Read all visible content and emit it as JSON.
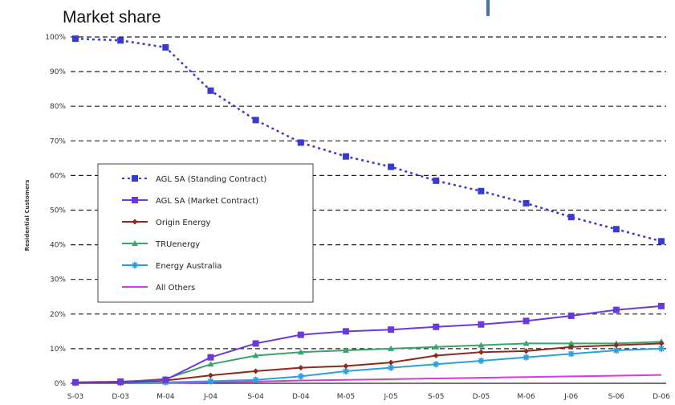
{
  "page": {
    "title": "Market share"
  },
  "chart_data": {
    "type": "line",
    "title": "",
    "xlabel": "",
    "ylabel": "Residential Customers",
    "categories": [
      "S-03",
      "D-03",
      "M-04",
      "J-04",
      "S-04",
      "D-04",
      "M-05",
      "J-05",
      "S-05",
      "D-05",
      "M-06",
      "J-06",
      "S-06",
      "D-06"
    ],
    "yticks": [
      "0%",
      "10%",
      "20%",
      "30%",
      "40%",
      "50%",
      "60%",
      "70%",
      "80%",
      "90%",
      "100%"
    ],
    "ylim": [
      0,
      100
    ],
    "grid": true,
    "legend_position": "left-middle",
    "series": [
      {
        "name": "AGL SA (Standing Contract)",
        "color": "#3a3ad0",
        "dashed": true,
        "marker": "square",
        "values": [
          99.5,
          99,
          97,
          84.5,
          76,
          69.5,
          65.5,
          62.5,
          58.5,
          55.5,
          52,
          48,
          44.5,
          41
        ]
      },
      {
        "name": "AGL SA (Market Contract)",
        "color": "#6a3ad8",
        "dashed": false,
        "marker": "square",
        "values": [
          0.3,
          0.5,
          1,
          7.5,
          11.5,
          14,
          15,
          15.5,
          16.3,
          17,
          18,
          19.5,
          21.2,
          22.3
        ]
      },
      {
        "name": "Origin Energy",
        "color": "#8b2b1e",
        "dashed": false,
        "marker": "diamond",
        "values": [
          0.2,
          0.3,
          0.8,
          2.3,
          3.5,
          4.5,
          5,
          6,
          8,
          9,
          9.3,
          10.5,
          11,
          11.5
        ]
      },
      {
        "name": "TRUenergy",
        "color": "#3aa36a",
        "dashed": false,
        "marker": "triangle",
        "values": [
          0.2,
          0.3,
          1.3,
          5.5,
          8,
          9,
          9.5,
          10,
          10.5,
          11,
          11.5,
          11.5,
          11.5,
          12
        ]
      },
      {
        "name": "Energy Australia",
        "color": "#2aa0e0",
        "dashed": false,
        "marker": "star",
        "values": [
          0.1,
          0.1,
          0.3,
          0.6,
          1,
          2,
          3.5,
          4.5,
          5.5,
          6.5,
          7.5,
          8.5,
          9.5,
          10
        ]
      },
      {
        "name": "All Others",
        "color": "#d63ad6",
        "dashed": false,
        "marker": "none",
        "values": [
          0,
          0,
          0.1,
          0.3,
          0.5,
          0.8,
          1,
          1.2,
          1.4,
          1.6,
          1.8,
          2,
          2.2,
          2.4
        ]
      }
    ]
  }
}
